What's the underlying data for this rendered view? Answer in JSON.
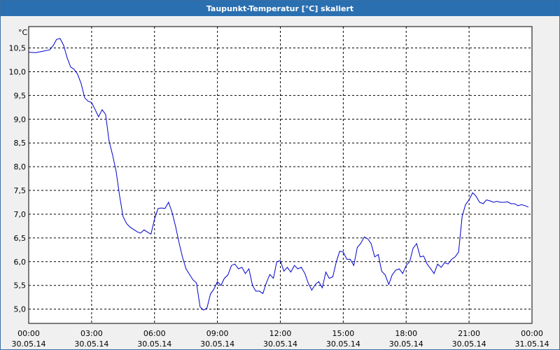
{
  "window": {
    "title": "Taupunkt-Temperatur [°C] skaliert"
  },
  "colors": {
    "line": "#0000cc",
    "grid": "#000000",
    "plot_bg": "#ffffff",
    "title_bar": "#2a6fb0"
  },
  "chart_data": {
    "type": "line",
    "title": "Taupunkt-Temperatur [°C] skaliert",
    "y_unit": "°C",
    "ylim": [
      4.7,
      10.95
    ],
    "xlim": [
      0,
      24
    ],
    "grid": true,
    "y_ticks": [
      {
        "value": 10.5,
        "label": "10,5"
      },
      {
        "value": 10.0,
        "label": "10,0"
      },
      {
        "value": 9.5,
        "label": "9,5"
      },
      {
        "value": 9.0,
        "label": "9,0"
      },
      {
        "value": 8.5,
        "label": "8,5"
      },
      {
        "value": 8.0,
        "label": "8,0"
      },
      {
        "value": 7.5,
        "label": "7,5"
      },
      {
        "value": 7.0,
        "label": "7,0"
      },
      {
        "value": 6.5,
        "label": "6,5"
      },
      {
        "value": 6.0,
        "label": "6,0"
      },
      {
        "value": 5.5,
        "label": "5,5"
      },
      {
        "value": 5.0,
        "label": "5,0"
      }
    ],
    "x_ticks": [
      {
        "value": 0,
        "time": "00:00",
        "date": "30.05.14"
      },
      {
        "value": 3,
        "time": "03:00",
        "date": "30.05.14"
      },
      {
        "value": 6,
        "time": "06:00",
        "date": "30.05.14"
      },
      {
        "value": 9,
        "time": "09:00",
        "date": "30.05.14"
      },
      {
        "value": 12,
        "time": "12:00",
        "date": "30.05.14"
      },
      {
        "value": 15,
        "time": "15:00",
        "date": "30.05.14"
      },
      {
        "value": 18,
        "time": "18:00",
        "date": "30.05.14"
      },
      {
        "value": 21,
        "time": "21:00",
        "date": "30.05.14"
      },
      {
        "value": 24,
        "time": "00:00",
        "date": "31.05.14"
      }
    ],
    "series": [
      {
        "points": [
          [
            0.0,
            10.41
          ],
          [
            0.33,
            10.4
          ],
          [
            0.67,
            10.43
          ],
          [
            1.0,
            10.46
          ],
          [
            1.17,
            10.55
          ],
          [
            1.33,
            10.68
          ],
          [
            1.5,
            10.7
          ],
          [
            1.67,
            10.55
          ],
          [
            1.83,
            10.3
          ],
          [
            2.0,
            10.1
          ],
          [
            2.17,
            10.05
          ],
          [
            2.33,
            9.95
          ],
          [
            2.5,
            9.75
          ],
          [
            2.67,
            9.45
          ],
          [
            2.83,
            9.38
          ],
          [
            3.0,
            9.35
          ],
          [
            3.17,
            9.2
          ],
          [
            3.33,
            9.05
          ],
          [
            3.5,
            9.2
          ],
          [
            3.67,
            9.1
          ],
          [
            3.83,
            8.55
          ],
          [
            4.0,
            8.25
          ],
          [
            4.17,
            7.9
          ],
          [
            4.33,
            7.4
          ],
          [
            4.5,
            6.95
          ],
          [
            4.67,
            6.8
          ],
          [
            4.83,
            6.73
          ],
          [
            5.0,
            6.68
          ],
          [
            5.17,
            6.63
          ],
          [
            5.33,
            6.6
          ],
          [
            5.5,
            6.67
          ],
          [
            5.67,
            6.62
          ],
          [
            5.83,
            6.58
          ],
          [
            6.0,
            6.9
          ],
          [
            6.17,
            7.12
          ],
          [
            6.33,
            7.13
          ],
          [
            6.5,
            7.12
          ],
          [
            6.67,
            7.25
          ],
          [
            6.83,
            7.05
          ],
          [
            7.0,
            6.75
          ],
          [
            7.17,
            6.4
          ],
          [
            7.33,
            6.1
          ],
          [
            7.5,
            5.85
          ],
          [
            7.67,
            5.73
          ],
          [
            7.83,
            5.62
          ],
          [
            8.0,
            5.55
          ],
          [
            8.17,
            5.05
          ],
          [
            8.33,
            4.98
          ],
          [
            8.5,
            5.02
          ],
          [
            8.67,
            5.32
          ],
          [
            8.83,
            5.42
          ],
          [
            9.0,
            5.58
          ],
          [
            9.17,
            5.5
          ],
          [
            9.33,
            5.65
          ],
          [
            9.5,
            5.72
          ],
          [
            9.67,
            5.92
          ],
          [
            9.83,
            5.95
          ],
          [
            10.0,
            5.85
          ],
          [
            10.17,
            5.88
          ],
          [
            10.33,
            5.75
          ],
          [
            10.5,
            5.85
          ],
          [
            10.67,
            5.5
          ],
          [
            10.83,
            5.38
          ],
          [
            11.0,
            5.38
          ],
          [
            11.17,
            5.33
          ],
          [
            11.33,
            5.55
          ],
          [
            11.5,
            5.73
          ],
          [
            11.67,
            5.65
          ],
          [
            11.83,
            6.0
          ],
          [
            12.0,
            6.02
          ],
          [
            12.17,
            5.8
          ],
          [
            12.33,
            5.88
          ],
          [
            12.5,
            5.78
          ],
          [
            12.67,
            5.92
          ],
          [
            12.83,
            5.85
          ],
          [
            13.0,
            5.88
          ],
          [
            13.17,
            5.75
          ],
          [
            13.33,
            5.55
          ],
          [
            13.5,
            5.4
          ],
          [
            13.67,
            5.52
          ],
          [
            13.83,
            5.58
          ],
          [
            14.0,
            5.45
          ],
          [
            14.17,
            5.78
          ],
          [
            14.33,
            5.65
          ],
          [
            14.5,
            5.68
          ],
          [
            14.67,
            6.0
          ],
          [
            14.83,
            6.22
          ],
          [
            15.0,
            6.2
          ],
          [
            15.17,
            6.05
          ],
          [
            15.33,
            6.05
          ],
          [
            15.5,
            5.92
          ],
          [
            15.67,
            6.3
          ],
          [
            15.83,
            6.38
          ],
          [
            16.0,
            6.52
          ],
          [
            16.17,
            6.48
          ],
          [
            16.33,
            6.38
          ],
          [
            16.5,
            6.1
          ],
          [
            16.67,
            6.15
          ],
          [
            16.83,
            5.8
          ],
          [
            17.0,
            5.72
          ],
          [
            17.17,
            5.52
          ],
          [
            17.33,
            5.72
          ],
          [
            17.5,
            5.82
          ],
          [
            17.67,
            5.85
          ],
          [
            17.83,
            5.75
          ],
          [
            18.0,
            5.92
          ],
          [
            18.17,
            6.0
          ],
          [
            18.33,
            6.28
          ],
          [
            18.5,
            6.38
          ],
          [
            18.67,
            6.1
          ],
          [
            18.83,
            6.12
          ],
          [
            19.0,
            5.95
          ],
          [
            19.17,
            5.85
          ],
          [
            19.33,
            5.75
          ],
          [
            19.5,
            5.95
          ],
          [
            19.67,
            5.88
          ],
          [
            19.83,
            5.98
          ],
          [
            20.0,
            5.95
          ],
          [
            20.17,
            6.05
          ],
          [
            20.33,
            6.1
          ],
          [
            20.5,
            6.2
          ],
          [
            20.67,
            6.95
          ],
          [
            20.83,
            7.2
          ],
          [
            21.0,
            7.3
          ],
          [
            21.17,
            7.45
          ],
          [
            21.33,
            7.38
          ],
          [
            21.5,
            7.25
          ],
          [
            21.67,
            7.22
          ],
          [
            21.83,
            7.3
          ],
          [
            22.0,
            7.28
          ],
          [
            22.17,
            7.25
          ],
          [
            22.33,
            7.27
          ],
          [
            22.5,
            7.25
          ],
          [
            22.67,
            7.25
          ],
          [
            22.83,
            7.26
          ],
          [
            23.0,
            7.22
          ],
          [
            23.17,
            7.22
          ],
          [
            23.33,
            7.18
          ],
          [
            23.5,
            7.2
          ],
          [
            23.67,
            7.18
          ],
          [
            23.83,
            7.15
          ]
        ]
      }
    ]
  }
}
